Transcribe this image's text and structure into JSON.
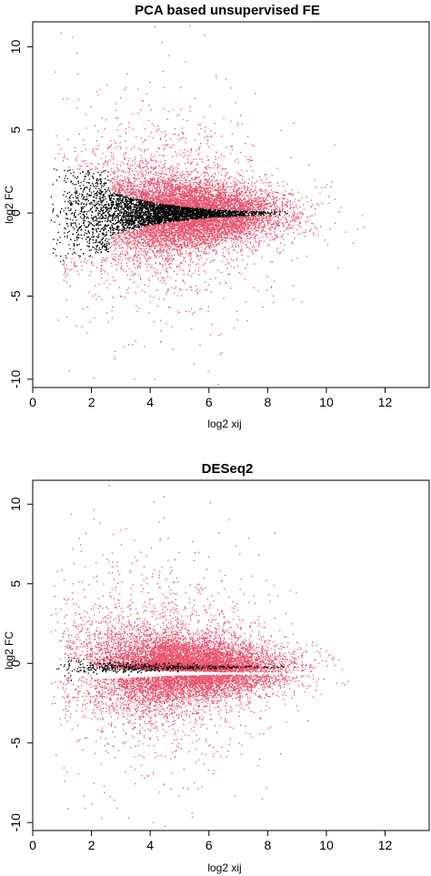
{
  "chart_data": [
    {
      "type": "scatter",
      "title": "PCA based unsupervised FE",
      "xlabel": "log2 xij",
      "ylabel": "log2 FC",
      "xlim": [
        0,
        13.5
      ],
      "ylim": [
        -10.5,
        11.5
      ],
      "x_ticks": [
        0,
        2,
        4,
        6,
        8,
        10,
        12
      ],
      "y_ticks": [
        -10,
        -5,
        0,
        5,
        10
      ],
      "grid": false,
      "series": [
        {
          "color": "#000000",
          "x_range": [
            0.6,
            8.6
          ],
          "cone_halfwidth_at_min_x": 2.2,
          "description_points": "non-selected genes forming narrowing band around 0"
        },
        {
          "color": "#e8546f",
          "x_range": [
            2.5,
            13.2
          ],
          "y_range": [
            -9.8,
            10.7
          ]
        }
      ]
    },
    {
      "type": "scatter",
      "title": "DESeq2",
      "xlabel": "log2 xij",
      "ylabel": "log2 FC",
      "xlim": [
        0,
        13.5
      ],
      "ylim": [
        -10.5,
        11.5
      ],
      "x_ticks": [
        0,
        2,
        4,
        6,
        8,
        10,
        12
      ],
      "y_ticks": [
        -10,
        -5,
        0,
        5,
        10
      ],
      "grid": false,
      "series": [
        {
          "color": "#000000",
          "x_range": [
            0.6,
            9.0
          ]
        },
        {
          "color": "#e8546f",
          "x_range": [
            1.0,
            13.2
          ],
          "y_range": [
            -9.8,
            10.7
          ]
        }
      ]
    }
  ]
}
